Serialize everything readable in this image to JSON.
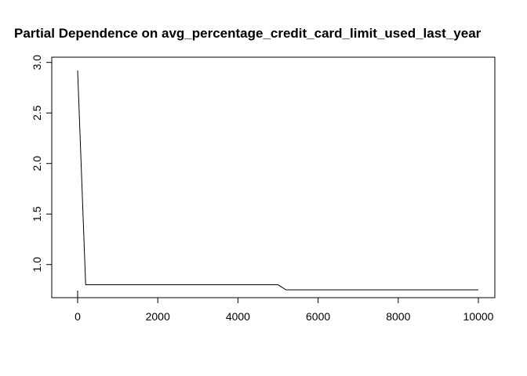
{
  "chart_data": {
    "type": "line",
    "title": "Partial Dependence on avg_percentage_credit_card_limit_used_last_year",
    "xlabel": "",
    "ylabel": "",
    "xlim": [
      0,
      10000
    ],
    "ylim": [
      0.75,
      3.0
    ],
    "x_ticks": [
      0,
      2000,
      4000,
      6000,
      8000,
      10000
    ],
    "y_ticks": [
      1.0,
      1.5,
      2.0,
      2.5,
      3.0
    ],
    "x_tick_labels": [
      "0",
      "2000",
      "4000",
      "6000",
      "8000",
      "10000"
    ],
    "y_tick_labels": [
      "1.0",
      "1.5",
      "2.0",
      "2.5",
      "3.0"
    ],
    "grid": false,
    "legend": "none",
    "series": [
      {
        "color": "#000000",
        "x": [
          0,
          200,
          5000,
          5200,
          10000
        ],
        "y": [
          2.92,
          0.8,
          0.8,
          0.75,
          0.75
        ]
      }
    ],
    "rug": [
      0
    ]
  }
}
